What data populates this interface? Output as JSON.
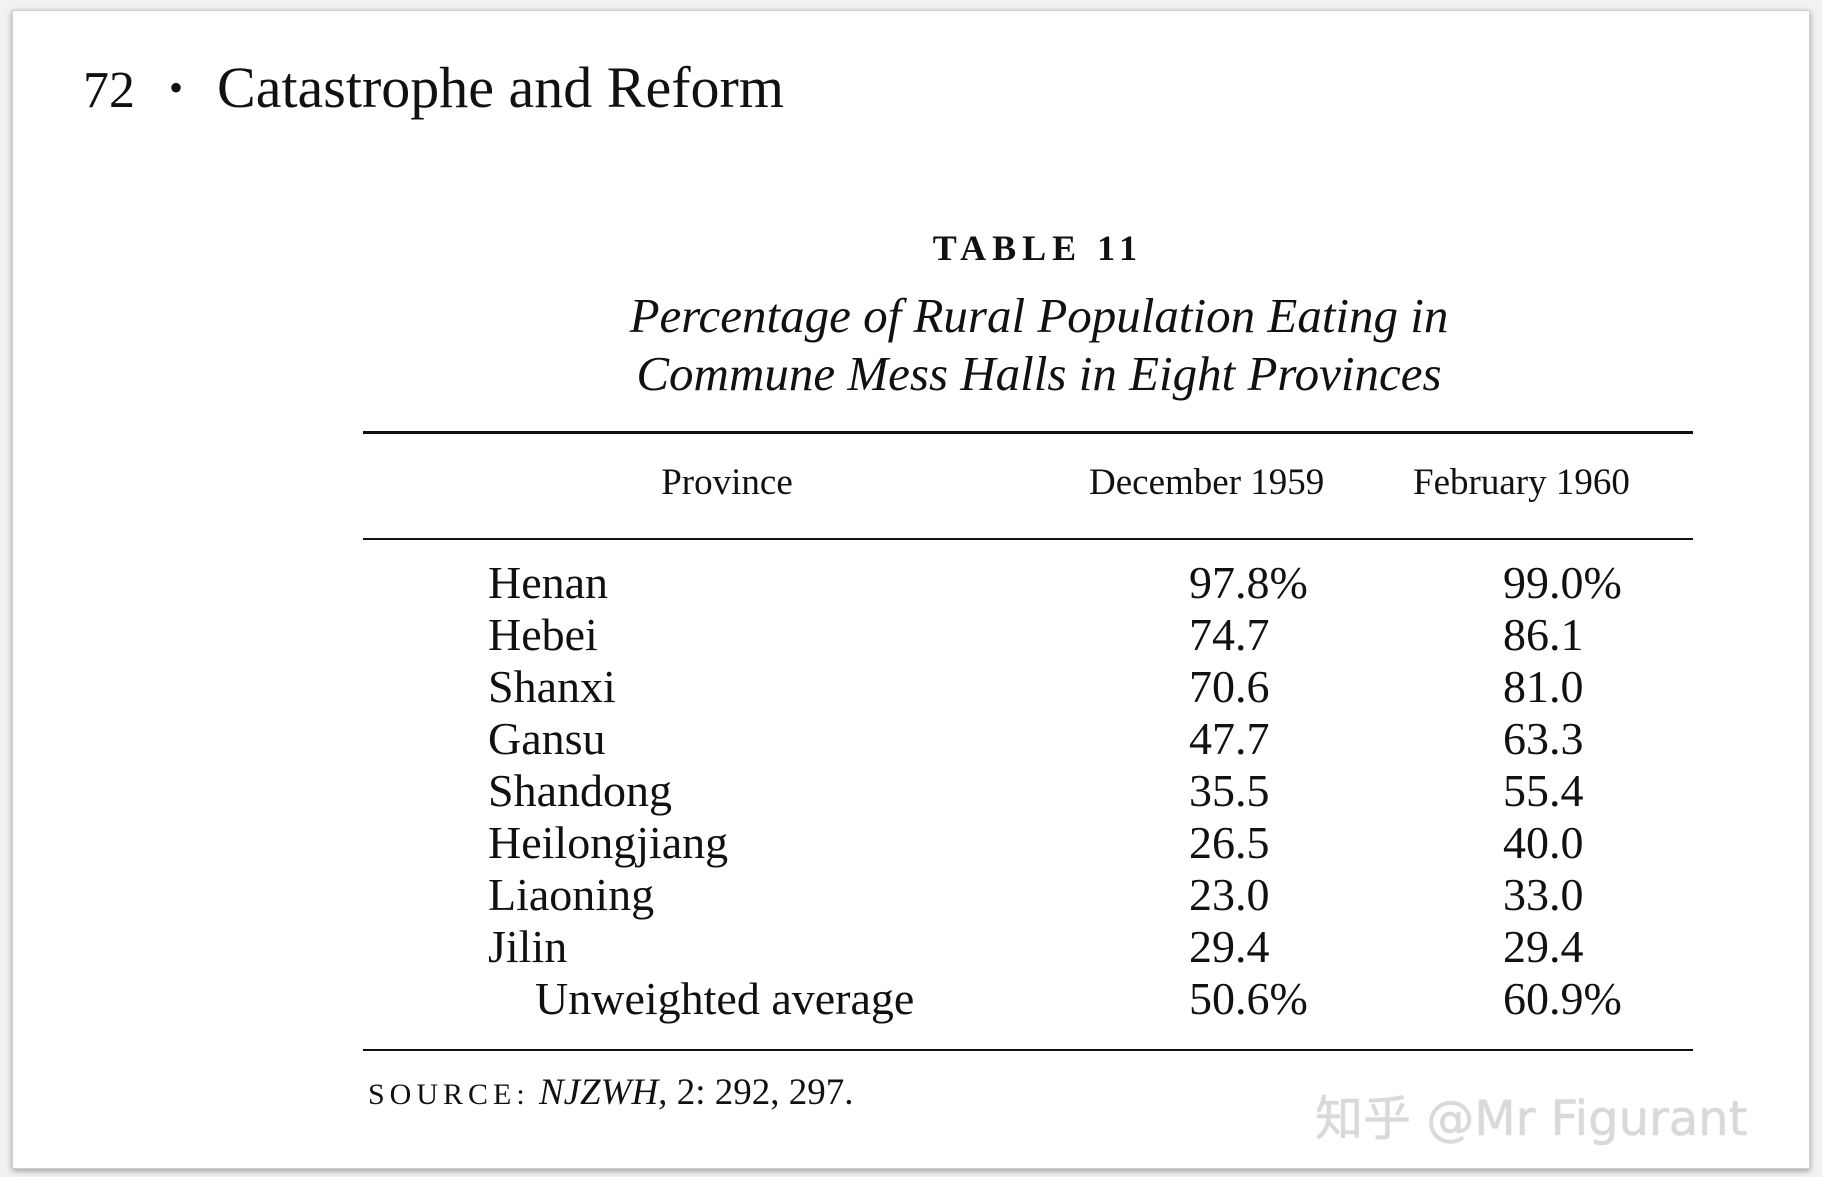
{
  "running_head": {
    "page_number": "72",
    "separator": "•",
    "title": "Catastrophe and Reform"
  },
  "table": {
    "label": "TABLE 11",
    "caption_line1": "Percentage of Rural Population Eating in",
    "caption_line2": "Commune Mess Halls in Eight Provinces",
    "headers": {
      "province": "Province",
      "dec_1959": "December 1959",
      "feb_1960": "February 1960"
    },
    "rows": [
      {
        "province": "Henan",
        "dec": "97.8%",
        "feb": "99.0%"
      },
      {
        "province": "Hebei",
        "dec": "74.7",
        "feb": "86.1"
      },
      {
        "province": "Shanxi",
        "dec": "70.6",
        "feb": "81.0"
      },
      {
        "province": "Gansu",
        "dec": "47.7",
        "feb": "63.3"
      },
      {
        "province": "Shandong",
        "dec": "35.5",
        "feb": "55.4"
      },
      {
        "province": "Heilongjiang",
        "dec": "26.5",
        "feb": "40.0"
      },
      {
        "province": "Liaoning",
        "dec": "23.0",
        "feb": "33.0"
      },
      {
        "province": "Jilin",
        "dec": "29.4",
        "feb": "29.4"
      }
    ],
    "average": {
      "province": "Unweighted average",
      "dec": "50.6%",
      "feb": "60.9%"
    }
  },
  "source": {
    "label": "SOURCE:",
    "citation": "NJZWH,",
    "pages": "2: 292, 297."
  },
  "watermark": "知乎 @Mr Figurant"
}
